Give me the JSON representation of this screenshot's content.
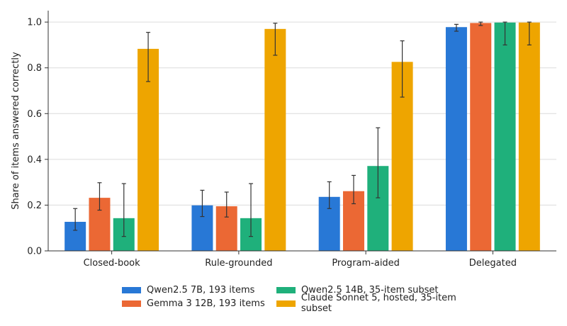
{
  "chart_data": {
    "type": "bar",
    "title": "",
    "xlabel": "",
    "ylabel": "Share of items answered correctly",
    "ylim": [
      0,
      1.05
    ],
    "yticks": [
      "0.0",
      "0.2",
      "0.4",
      "0.6",
      "0.8",
      "1.0"
    ],
    "grid": "horizontal",
    "legend_position": "bottom",
    "categories": [
      "Closed-book",
      "Rule-grounded",
      "Program-aided",
      "Delegated"
    ],
    "series": [
      {
        "name": "Qwen2.5 7B, 193 items",
        "color": "#2878d6",
        "values": [
          0.127,
          0.199,
          0.236,
          0.978
        ],
        "err_low": [
          0.09,
          0.15,
          0.185,
          0.96
        ],
        "err_high": [
          0.185,
          0.265,
          0.302,
          0.99
        ]
      },
      {
        "name": "Gemma 3 12B, 193 items",
        "color": "#eb6834",
        "values": [
          0.232,
          0.195,
          0.261,
          0.996
        ],
        "err_low": [
          0.178,
          0.148,
          0.206,
          0.985
        ],
        "err_high": [
          0.298,
          0.257,
          0.33,
          1.0
        ]
      },
      {
        "name": "Qwen2.5 14B, 35-item subset",
        "color": "#1fb07b",
        "values": [
          0.143,
          0.143,
          0.371,
          0.998
        ],
        "err_low": [
          0.063,
          0.063,
          0.232,
          0.9
        ],
        "err_high": [
          0.294,
          0.294,
          0.538,
          1.0
        ]
      },
      {
        "name": "Claude Sonnet 5, hosted, 35-item subset",
        "color": "#eea500",
        "values": [
          0.883,
          0.97,
          0.826,
          0.998
        ],
        "err_low": [
          0.74,
          0.855,
          0.672,
          0.9
        ],
        "err_high": [
          0.955,
          0.995,
          0.918,
          1.0
        ]
      }
    ]
  }
}
